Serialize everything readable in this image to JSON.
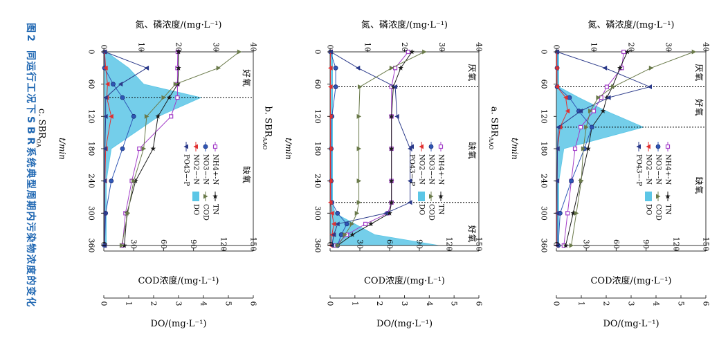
{
  "figure": {
    "caption": "图2 不同运行工况下SBR系统典型周期内污染物浓度的变化"
  },
  "colors": {
    "nh4": "#a23cc8",
    "tn": "#1a1a1a",
    "no3": "#2f56b5",
    "cod": "#6a7a4a",
    "no2": "#e03030",
    "po4": "#2b3a8a",
    "do_fill": "#5cc6e6",
    "caption": "#1f67b2"
  },
  "chart_data": [
    {
      "type": "line",
      "id": "c",
      "title": "c. SBR",
      "title_sub": "OA",
      "xlabel": "t/min",
      "x_ticks": [
        0,
        60,
        120,
        180,
        240,
        300,
        360
      ],
      "xlim": [
        0,
        360
      ],
      "axis_top_label": "氮、磷浓度/(mg·L⁻¹)",
      "axis_top_ticks": [
        0,
        10,
        20,
        30,
        40
      ],
      "axis_top_range": [
        0,
        40
      ],
      "axis_mid_label": "COD浓度/(mg·L⁻¹)",
      "axis_mid_ticks": [
        0,
        30,
        60,
        90,
        120,
        150
      ],
      "axis_mid_range": [
        0,
        150
      ],
      "axis_bot_label": "DO/(mg·L⁻¹)",
      "axis_bot_ticks": [
        0,
        1,
        2,
        3,
        4,
        5,
        6
      ],
      "axis_bot_range": [
        0,
        6
      ],
      "phase_boundaries": [
        85
      ],
      "phase_labels": [
        "好氧",
        "缺氧"
      ],
      "phase_label_t": [
        40,
        220
      ],
      "x": [
        0,
        30,
        60,
        85,
        120,
        180,
        240,
        300,
        360
      ],
      "series": [
        {
          "key": "nh4",
          "name": "NH4+-N",
          "values": [
            19.8,
            19.7,
            19.7,
            19.7,
            18.0,
            9.5,
            7.5,
            5.8,
            5.0
          ]
        },
        {
          "key": "tn",
          "name": "TN",
          "values": [
            20.0,
            20.0,
            19.8,
            17.5,
            14.5,
            13.2,
            8.5,
            6.2,
            5.5
          ]
        },
        {
          "key": "no3",
          "name": "NO3−-N",
          "values": [
            0.2,
            0.2,
            2.5,
            5.0,
            8.0,
            5.0,
            2.0,
            0.5,
            0.2
          ]
        },
        {
          "key": "no2",
          "name": "NO2−-N",
          "values": [
            0.2,
            0.5,
            1.0,
            0.8,
            2.0,
            0.5,
            0.3,
            0.2,
            0.2
          ]
        },
        {
          "key": "po4",
          "name": "PO43−-P",
          "values": [
            0.3,
            11.5,
            4.5,
            0.5,
            0.5,
            0.3,
            0.2,
            0.2,
            0.2
          ]
        },
        {
          "key": "cod",
          "name": "COD",
          "axis": "mid",
          "values": [
            136,
            115,
            72,
            60,
            43,
            40,
            30,
            24,
            18
          ]
        },
        {
          "key": "do",
          "name": "DO",
          "axis": "bot",
          "area": true,
          "values": [
            0.1,
            1.0,
            1.6,
            3.9,
            2.2,
            0.3,
            0.1,
            0.1,
            0.1
          ]
        }
      ]
    },
    {
      "type": "line",
      "id": "b",
      "title": "b. SBR",
      "title_sub": "AAO",
      "xlabel": "t/min",
      "x_ticks": [
        0,
        60,
        120,
        180,
        240,
        300,
        360
      ],
      "xlim": [
        0,
        360
      ],
      "axis_top_label": "氮、磷浓度/(mg·L⁻¹)",
      "axis_top_ticks": [
        0,
        10,
        20,
        30,
        40
      ],
      "axis_top_range": [
        0,
        40
      ],
      "axis_mid_label": "COD浓度/(mg·L⁻¹)",
      "axis_mid_ticks": [
        0,
        30,
        60,
        90,
        120,
        150
      ],
      "axis_mid_range": [
        0,
        150
      ],
      "axis_bot_label": "DO/(mg·L⁻¹)",
      "axis_bot_ticks": [
        0,
        1,
        2,
        3,
        4,
        5,
        6
      ],
      "axis_bot_range": [
        0,
        6
      ],
      "phase_boundaries": [
        65,
        280
      ],
      "phase_labels": [
        "厌氧",
        "缺氧",
        "好氧"
      ],
      "phase_label_t": [
        30,
        175,
        330
      ],
      "x": [
        0,
        30,
        65,
        120,
        180,
        240,
        280,
        300,
        320,
        340,
        360
      ],
      "series": [
        {
          "key": "nh4",
          "name": "NH4+-N",
          "values": [
            21.0,
            17.5,
            16.5,
            16.5,
            16.5,
            16.5,
            16.5,
            15.5,
            9.5,
            4.5,
            1.5
          ]
        },
        {
          "key": "tn",
          "name": "TN",
          "values": [
            22.0,
            19.0,
            17.0,
            16.5,
            16.5,
            16.5,
            16.5,
            16.0,
            11.0,
            6.0,
            2.0
          ]
        },
        {
          "key": "no3",
          "name": "NO3−-N",
          "values": [
            0.1,
            1.5,
            1.5,
            0.5,
            0.3,
            0.3,
            0.5,
            2.0,
            4.5,
            3.0,
            2.0
          ]
        },
        {
          "key": "no2",
          "name": "NO2−-N",
          "values": [
            0.1,
            0.1,
            0.1,
            0.1,
            0.1,
            0.1,
            0.1,
            0.5,
            1.0,
            0.5,
            0.2
          ]
        },
        {
          "key": "po4",
          "name": "PO43−-P",
          "values": [
            0.2,
            7.5,
            17.5,
            18.0,
            21.5,
            21.5,
            21.5,
            15.0,
            2.0,
            1.0,
            0.5
          ]
        },
        {
          "key": "cod",
          "name": "COD",
          "axis": "mid",
          "values": [
            95,
            62,
            30,
            29,
            29,
            29,
            29,
            27,
            22,
            15,
            8
          ]
        },
        {
          "key": "do",
          "name": "DO",
          "axis": "bot",
          "area": true,
          "values": [
            0.1,
            0.1,
            0.1,
            0.1,
            0.1,
            0.1,
            0.1,
            0.2,
            1.0,
            1.8,
            4.4
          ]
        }
      ]
    },
    {
      "type": "line",
      "id": "a",
      "title": "a. SBR",
      "title_sub": "AAO",
      "xlabel": "t/min",
      "x_ticks": [
        0,
        60,
        120,
        180,
        240,
        300,
        360
      ],
      "xlim": [
        0,
        360
      ],
      "axis_top_label": "氮、磷浓度/(mg·L⁻¹)",
      "axis_top_ticks": [
        0,
        10,
        20,
        30,
        40
      ],
      "axis_top_range": [
        0,
        40
      ],
      "axis_mid_label": "COD浓度/(mg·L⁻¹)",
      "axis_mid_ticks": [
        0,
        30,
        60,
        90,
        120,
        150
      ],
      "axis_mid_range": [
        0,
        150
      ],
      "axis_bot_label": "DO/(mg·L⁻¹)",
      "axis_bot_ticks": [
        0,
        1,
        2,
        3,
        4,
        5,
        6
      ],
      "axis_bot_range": [
        0,
        6
      ],
      "phase_boundaries": [
        65,
        140
      ],
      "phase_labels": [
        "厌氧",
        "好氧",
        "缺氧"
      ],
      "phase_label_t": [
        30,
        95,
        240
      ],
      "x": [
        0,
        30,
        65,
        85,
        110,
        140,
        180,
        240,
        300,
        360
      ],
      "series": [
        {
          "key": "nh4",
          "name": "NH4+-N",
          "values": [
            18.0,
            17.5,
            13.5,
            12.0,
            10.0,
            6.5,
            5.0,
            4.0,
            3.0,
            2.0
          ]
        },
        {
          "key": "tn",
          "name": "TN",
          "values": [
            19.0,
            17.0,
            15.0,
            13.5,
            12.5,
            9.5,
            8.5,
            6.5,
            4.5,
            2.5
          ]
        },
        {
          "key": "no3",
          "name": "NO3−-N",
          "values": [
            0.2,
            0.2,
            0.2,
            3.5,
            6.0,
            9.5,
            7.5,
            4.0,
            1.0,
            0.5
          ]
        },
        {
          "key": "no2",
          "name": "NO2−-N",
          "values": [
            0.1,
            0.1,
            0.2,
            2.5,
            3.0,
            1.0,
            0.3,
            0.2,
            0.1,
            0.1
          ]
        },
        {
          "key": "po4",
          "name": "PO43−-P",
          "values": [
            0.2,
            13.0,
            25.0,
            14.0,
            6.5,
            0.5,
            0.3,
            0.2,
            0.2,
            0.2
          ]
        },
        {
          "key": "cod",
          "name": "COD",
          "axis": "mid",
          "values": [
            138,
            95,
            57,
            42,
            34,
            30,
            27,
            25,
            20,
            15
          ]
        },
        {
          "key": "do",
          "name": "DO",
          "axis": "bot",
          "area": true,
          "values": [
            0.1,
            0.1,
            0.1,
            0.9,
            2.0,
            3.5,
            0.3,
            0.1,
            0.1,
            0.1
          ]
        }
      ]
    }
  ]
}
